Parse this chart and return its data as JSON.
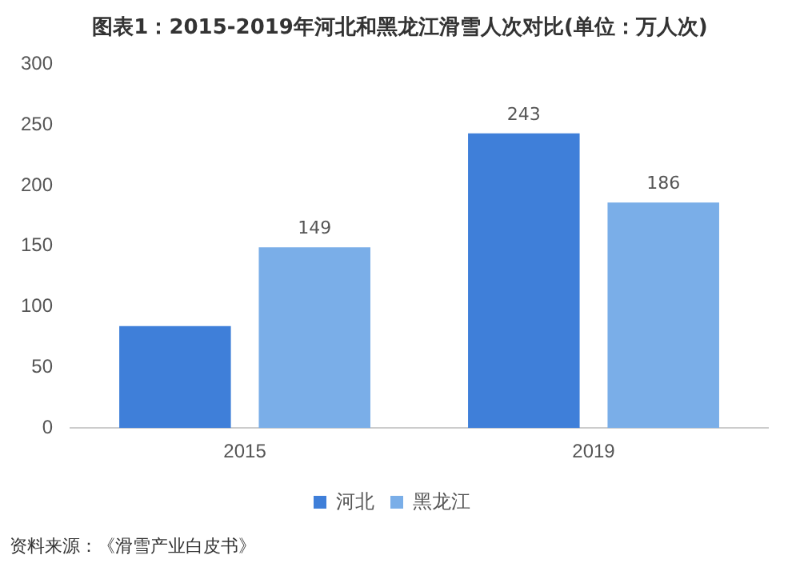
{
  "chart_data": {
    "type": "bar",
    "title": "图表1：2015-2019年河北和黑龙江滑雪人次对比(单位：万人次)",
    "categories": [
      "2015",
      "2019"
    ],
    "series": [
      {
        "name": "河北",
        "color": "#3f7fd9",
        "values": [
          84,
          243
        ],
        "value_labels": [
          null,
          "243"
        ]
      },
      {
        "name": "黑龙江",
        "color": "#7aaee8",
        "values": [
          149,
          186
        ],
        "value_labels": [
          "149",
          "186"
        ]
      }
    ],
    "ylim": [
      0,
      300
    ],
    "yticks": [
      0,
      50,
      100,
      150,
      200,
      250,
      300
    ],
    "grid": false,
    "legend": "bottom",
    "annotations": [
      "资料来源：《滑雪产业白皮书》"
    ]
  }
}
